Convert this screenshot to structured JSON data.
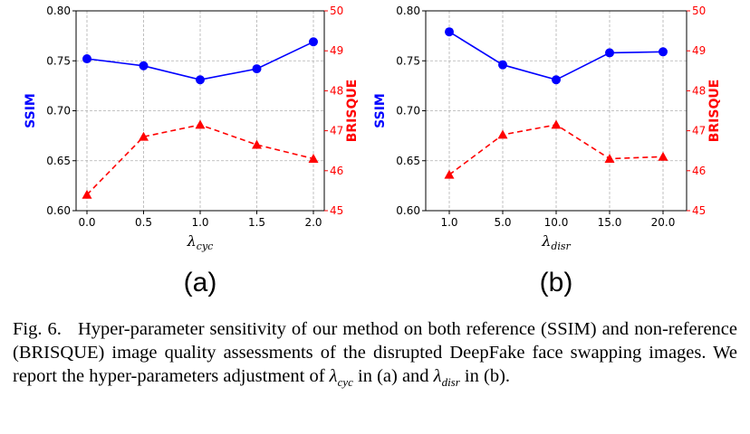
{
  "chart_data": [
    {
      "type": "line",
      "panel_label": "(a)",
      "xlabel_main": "λ",
      "xlabel_sub": "cyc",
      "categories": [
        "0.0",
        "0.5",
        "1.0",
        "1.5",
        "2.0"
      ],
      "series": [
        {
          "name": "SSIM",
          "axis": "left",
          "color": "#0000ff",
          "style": "solid",
          "marker": "circle",
          "values": [
            0.752,
            0.745,
            0.731,
            0.742,
            0.769
          ]
        },
        {
          "name": "BRISQUE",
          "axis": "right",
          "color": "#ff0000",
          "style": "dashed",
          "marker": "triangle",
          "values": [
            45.4,
            46.85,
            47.15,
            46.65,
            46.3
          ]
        }
      ],
      "ylabel_left": "SSIM",
      "ylabel_right": "BRISQUE",
      "ylim_left": [
        0.6,
        0.8
      ],
      "yticks_left": [
        "0.60",
        "0.65",
        "0.70",
        "0.75",
        "0.80"
      ],
      "ylim_right": [
        45,
        50
      ],
      "yticks_right": [
        "45",
        "46",
        "47",
        "48",
        "49",
        "50"
      ],
      "grid": true
    },
    {
      "type": "line",
      "panel_label": "(b)",
      "xlabel_main": "λ",
      "xlabel_sub": "disr",
      "categories": [
        "1.0",
        "5.0",
        "10.0",
        "15.0",
        "20.0"
      ],
      "series": [
        {
          "name": "SSIM",
          "axis": "left",
          "color": "#0000ff",
          "style": "solid",
          "marker": "circle",
          "values": [
            0.779,
            0.746,
            0.731,
            0.758,
            0.759
          ]
        },
        {
          "name": "BRISQUE",
          "axis": "right",
          "color": "#ff0000",
          "style": "dashed",
          "marker": "triangle",
          "values": [
            45.9,
            46.9,
            47.15,
            46.3,
            46.35
          ]
        }
      ],
      "ylabel_left": "SSIM",
      "ylabel_right": "BRISQUE",
      "ylim_left": [
        0.6,
        0.8
      ],
      "yticks_left": [
        "0.60",
        "0.65",
        "0.70",
        "0.75",
        "0.80"
      ],
      "ylim_right": [
        45,
        50
      ],
      "yticks_right": [
        "45",
        "46",
        "47",
        "48",
        "49",
        "50"
      ],
      "grid": true
    }
  ],
  "caption": {
    "label": "Fig. 6.",
    "text_1": "Hyper-parameter sensitivity of our method on both reference (SSIM) and non-reference (BRISQUE) image quality assessments of the disrupted DeepFake face swapping images. We report the hyper-parameters adjustment of ",
    "sym_1": "λ",
    "sub_1": "cyc",
    "text_2": " in (a) and ",
    "sym_2": "λ",
    "sub_2": "disr",
    "text_3": " in (b)."
  }
}
